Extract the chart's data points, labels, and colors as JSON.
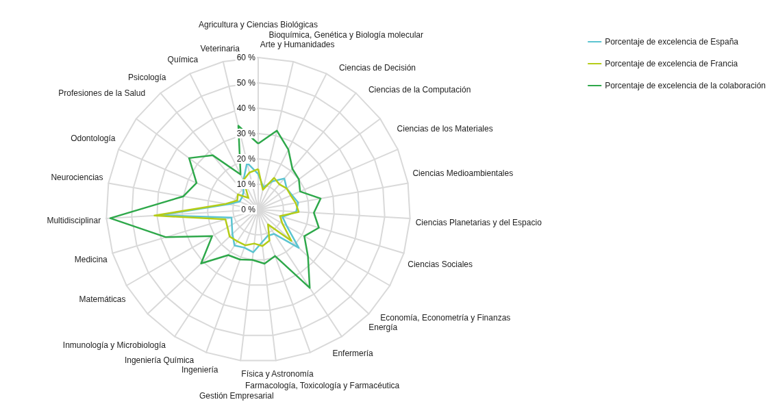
{
  "chart_data": {
    "type": "radar",
    "categories": [
      "Agricultura y Ciencias Biológicas",
      "Arte y Humanidades",
      "Bioquímica, Genética y Biología molecular",
      "Ciencias de Decisión",
      "Ciencias de la Computación",
      "Ciencias de los Materiales",
      "Ciencias Medioambientales",
      "Ciencias Planetarias y del Espacio",
      "Ciencias Sociales",
      "Economía, Econometría y Finanzas",
      "Energía",
      "Enfermería",
      "Farmacología, Toxicología y Farmacéutica",
      "Física y Astronomía",
      "Gestión Empresarial",
      "Ingeniería",
      "Ingeniería Química",
      "Inmunología y Microbiología",
      "Matemáticas",
      "Medicina",
      "Multidisciplinar",
      "Neurociencias",
      "Odontología",
      "Profesiones de la Salud",
      "Psicología",
      "Química",
      "Veterinaria"
    ],
    "series": [
      {
        "name": "Porcentaje de excelencia de España",
        "color": "#5bc4d1",
        "values": [
          14,
          9,
          12.5,
          16,
          14,
          14.5,
          16,
          15,
          10,
          13,
          22,
          11.5,
          11,
          13,
          17,
          16,
          17,
          14,
          12,
          11,
          39,
          12,
          8,
          8,
          9,
          13,
          19
        ]
      },
      {
        "name": "Porcentaje de excelencia de Francia",
        "color": "#b5cc18",
        "values": [
          16,
          8,
          14,
          13,
          14,
          14,
          15,
          16,
          9,
          11,
          18,
          7,
          13,
          14.5,
          13.5,
          15,
          15,
          15.5,
          14,
          13.5,
          41,
          13,
          9,
          10,
          6,
          13,
          15
        ]
      },
      {
        "name": "Porcentaje de excelencia de la colaboración",
        "color": "#2ea84a",
        "values": [
          26,
          32,
          26.5,
          21,
          20,
          18,
          25,
          22,
          25,
          21,
          27,
          37,
          19.5,
          21.5,
          20,
          21,
          21.5,
          31,
          21,
          38,
          58.5,
          30,
          26.5,
          34,
          28,
          15.5,
          34
        ]
      }
    ],
    "ylim": [
      0,
      60
    ],
    "yticks": [
      {
        "value": 0,
        "label": "0 %"
      },
      {
        "value": 10,
        "label": "10 %"
      },
      {
        "value": 20,
        "label": "20 %"
      },
      {
        "value": 30,
        "label": "30 %"
      },
      {
        "value": 40,
        "label": "40 %"
      },
      {
        "value": 50,
        "label": "50 %"
      },
      {
        "value": 60,
        "label": "60 %"
      }
    ],
    "grid": true,
    "legend": "top right",
    "marker": "none",
    "line_style": "solid"
  }
}
